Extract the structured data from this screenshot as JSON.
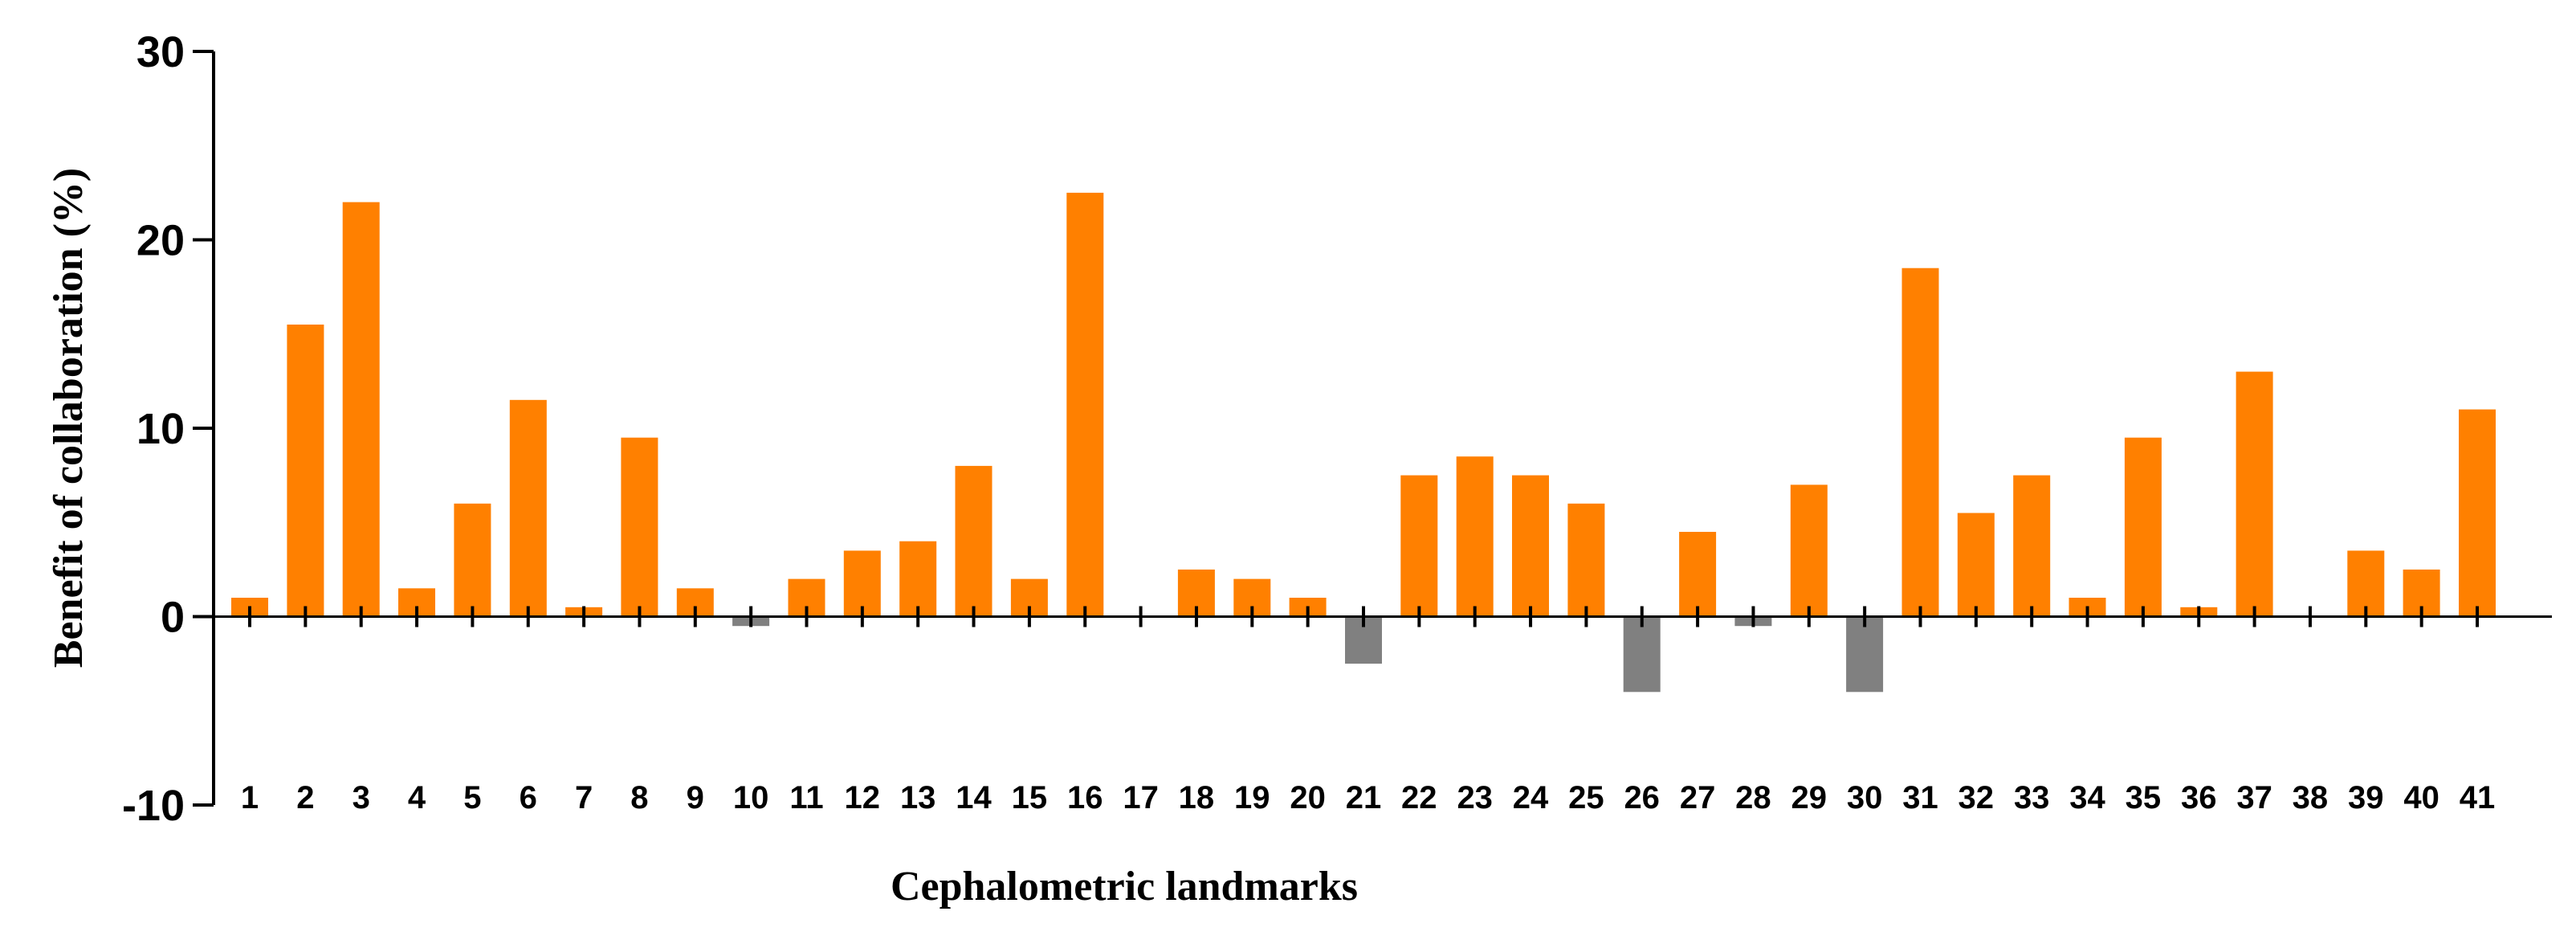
{
  "chart_data": {
    "type": "bar",
    "xlabel": "Cephalometric landmarks",
    "ylabel": "Benefit of collaboration (%)",
    "ylim": [
      -10,
      30
    ],
    "yticks": [
      -10,
      0,
      10,
      20,
      30
    ],
    "categories": [
      "1",
      "2",
      "3",
      "4",
      "5",
      "6",
      "7",
      "8",
      "9",
      "10",
      "11",
      "12",
      "13",
      "14",
      "15",
      "16",
      "17",
      "18",
      "19",
      "20",
      "21",
      "22",
      "23",
      "24",
      "25",
      "26",
      "27",
      "28",
      "29",
      "30",
      "31",
      "32",
      "33",
      "34",
      "35",
      "36",
      "37",
      "38",
      "39",
      "40",
      "41"
    ],
    "values": [
      1,
      15.5,
      22,
      1.5,
      6,
      11.5,
      0.5,
      9.5,
      1.5,
      -0.5,
      2,
      3.5,
      4,
      8,
      2,
      22.5,
      0,
      2.5,
      2,
      1,
      -2.5,
      7.5,
      8.5,
      7.5,
      6,
      -4,
      4.5,
      -0.5,
      7,
      -4,
      18.5,
      5.5,
      7.5,
      1,
      9.5,
      0.5,
      13,
      0,
      3.5,
      2.5,
      11
    ],
    "grid": false,
    "legend": "none",
    "colors": {
      "positive": "#FF8000",
      "negative": "#808080",
      "axis": "#000000"
    }
  }
}
